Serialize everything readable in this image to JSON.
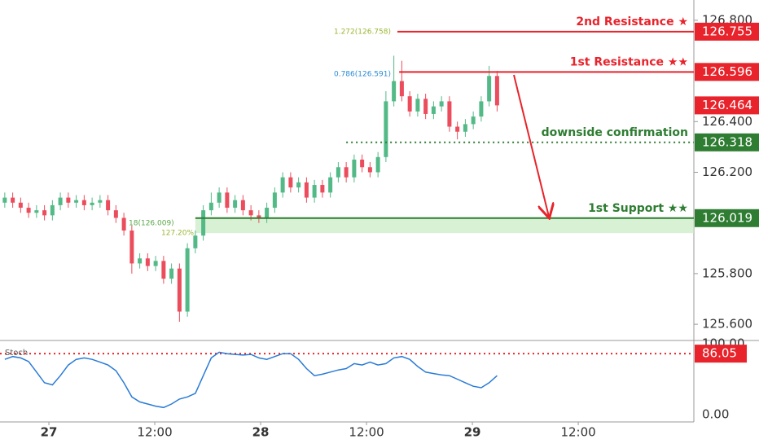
{
  "chart_data": {
    "type": "candlestick",
    "up_color": "#53b987",
    "down_color": "#eb4d5c",
    "x": [
      -5,
      -4.1,
      -3.2,
      -2.3,
      -1.4,
      -0.5,
      0.4,
      1.3,
      2.2,
      3.1,
      4,
      4.9,
      5.8,
      6.7,
      7.6,
      8.5,
      9.4,
      10.3,
      11.2,
      12.1,
      13,
      13.9,
      14.8,
      15.7,
      16.6,
      17.5,
      18.4,
      19.3,
      20.2,
      21.1,
      22,
      22.9,
      23.8,
      24.7,
      25.6,
      26.5,
      27.4,
      28.3,
      29.2,
      30.1,
      31,
      31.9,
      32.8,
      33.7,
      34.6,
      35.5,
      36.4,
      37.3,
      38.2,
      39.1,
      40,
      40.9,
      41.8,
      42.7,
      43.6,
      44.5,
      45.4,
      46.3,
      47.2,
      48.1,
      49,
      49.9,
      50.8
    ],
    "open": [
      126.08,
      126.1,
      126.08,
      126.06,
      126.04,
      126.05,
      126.03,
      126.07,
      126.1,
      126.08,
      126.09,
      126.07,
      126.08,
      126.09,
      126.05,
      126.02,
      125.97,
      125.84,
      125.86,
      125.83,
      125.85,
      125.78,
      125.82,
      125.65,
      125.9,
      125.95,
      126.05,
      126.08,
      126.12,
      126.06,
      126.09,
      126.05,
      126.03,
      126.02,
      126.06,
      126.12,
      126.18,
      126.14,
      126.16,
      126.1,
      126.15,
      126.12,
      126.18,
      126.22,
      126.18,
      126.25,
      126.22,
      126.2,
      126.26,
      126.48,
      126.56,
      126.5,
      126.44,
      126.49,
      126.43,
      126.46,
      126.48,
      126.38,
      126.36,
      126.39,
      126.42,
      126.48,
      126.58
    ],
    "high": [
      126.12,
      126.12,
      126.1,
      126.08,
      126.07,
      126.07,
      126.09,
      126.12,
      126.12,
      126.11,
      126.11,
      126.1,
      126.11,
      126.11,
      126.07,
      126.04,
      125.99,
      125.88,
      125.88,
      125.87,
      125.87,
      125.84,
      125.84,
      125.92,
      125.97,
      126.07,
      126.12,
      126.14,
      126.14,
      126.11,
      126.11,
      126.07,
      126.05,
      126.08,
      126.14,
      126.2,
      126.2,
      126.18,
      126.18,
      126.17,
      126.17,
      126.2,
      126.24,
      126.24,
      126.27,
      126.27,
      126.24,
      126.28,
      126.52,
      126.66,
      126.64,
      126.52,
      126.51,
      126.51,
      126.48,
      126.5,
      126.5,
      126.4,
      126.41,
      126.44,
      126.5,
      126.62,
      126.6
    ],
    "low": [
      126.06,
      126.06,
      126.04,
      126.02,
      126.02,
      126.01,
      126.01,
      126.05,
      126.06,
      126.06,
      126.05,
      126.05,
      126.06,
      126.03,
      126.0,
      125.95,
      125.8,
      125.82,
      125.81,
      125.81,
      125.76,
      125.76,
      125.61,
      125.63,
      125.88,
      125.93,
      126.03,
      126.06,
      126.04,
      126.04,
      126.03,
      126.01,
      126.0,
      126.0,
      126.04,
      126.1,
      126.12,
      126.12,
      126.08,
      126.08,
      126.1,
      126.1,
      126.16,
      126.16,
      126.16,
      126.2,
      126.18,
      126.18,
      126.24,
      126.46,
      126.48,
      126.42,
      126.42,
      126.41,
      126.41,
      126.44,
      126.36,
      126.33,
      126.34,
      126.37,
      126.4,
      126.46,
      126.44
    ],
    "close": [
      126.1,
      126.08,
      126.06,
      126.04,
      126.05,
      126.03,
      126.07,
      126.1,
      126.08,
      126.09,
      126.07,
      126.08,
      126.09,
      126.05,
      126.02,
      125.97,
      125.84,
      125.86,
      125.83,
      125.85,
      125.78,
      125.82,
      125.65,
      125.9,
      125.95,
      126.05,
      126.08,
      126.12,
      126.06,
      126.09,
      126.05,
      126.03,
      126.02,
      126.06,
      126.12,
      126.18,
      126.14,
      126.16,
      126.1,
      126.15,
      126.12,
      126.18,
      126.22,
      126.18,
      126.25,
      126.22,
      126.2,
      126.26,
      126.48,
      126.56,
      126.5,
      126.44,
      126.49,
      126.43,
      126.46,
      126.48,
      126.38,
      126.36,
      126.39,
      126.42,
      126.48,
      126.58,
      126.464
    ],
    "xlim": [
      -5.54,
      73.1
    ],
    "xticks": [
      {
        "value": 0,
        "label": "27"
      },
      {
        "value": 12,
        "label": "12:00"
      },
      {
        "value": 24,
        "label": "28"
      },
      {
        "value": 36,
        "label": "12:00"
      },
      {
        "value": 48,
        "label": "29"
      },
      {
        "value": 60,
        "label": "12:00"
      }
    ],
    "ylim": [
      125.536,
      126.88
    ],
    "yticks": [
      {
        "value": 126.8,
        "label": "126.800"
      },
      {
        "value": 126.4,
        "label": "126.400"
      },
      {
        "value": 126.2,
        "label": "126.200"
      },
      {
        "value": 125.8,
        "label": "125.800"
      },
      {
        "value": 125.6,
        "label": "125.600"
      }
    ],
    "levels": [
      {
        "name": "2nd Resistance ★",
        "value": 126.755,
        "label": "126.755",
        "color": "#e8232b",
        "style": "solid",
        "from": 39.5
      },
      {
        "name": "1st Resistance ★★",
        "value": 126.596,
        "label": "126.596",
        "color": "#e8232b",
        "style": "solid",
        "from": 39.7
      },
      {
        "value": 126.464,
        "label": "126.464",
        "color": "#e8232b",
        "style": "none"
      },
      {
        "name": "downside confirmation",
        "value": 126.318,
        "label": "126.318",
        "color": "#2e7d32",
        "style": "dotted",
        "from": 33.7
      },
      {
        "name": "1st Support ★★",
        "value": 126.019,
        "label": "126.019",
        "color": "#2e7d32",
        "style": "solid",
        "from": 16.6
      }
    ],
    "zone": {
      "top": 126.019,
      "bottom": 125.96,
      "from": 16.6,
      "color": "#c8eac0"
    },
    "fibs": [
      {
        "label": "1.272(126.758)",
        "value": 126.758,
        "color": "#9ab533"
      },
      {
        "label": "0.786(126.591)",
        "value": 126.591,
        "color": "#2a8bd6"
      },
      {
        "label": "18(126.009)",
        "value": 126.009,
        "color": "#5aa84a"
      },
      {
        "label": "127.20%",
        "value": 125.97,
        "color": "#9ab533"
      }
    ],
    "stoch": {
      "title": "Stoch",
      "color": "#2a7bd6",
      "ylim": [
        -10.3,
        104.6
      ],
      "yticks": [
        {
          "value": 100,
          "label": "100.00"
        },
        {
          "value": 0,
          "label": "0.00"
        }
      ],
      "values": [
        78,
        82,
        80,
        75,
        60,
        45,
        42,
        55,
        70,
        78,
        80,
        78,
        74,
        70,
        62,
        45,
        25,
        18,
        15,
        12,
        10,
        15,
        22,
        25,
        30,
        55,
        80,
        88,
        86,
        85,
        84,
        85,
        80,
        78,
        82,
        86,
        86,
        78,
        65,
        55,
        57,
        60,
        63,
        65,
        72,
        70,
        74,
        70,
        72,
        80,
        82,
        78,
        68,
        60,
        58,
        56,
        55,
        50,
        45,
        40,
        38,
        45,
        55
      ],
      "level": {
        "value": 86.05,
        "label": "86.05",
        "color": "#e8232b"
      }
    }
  }
}
